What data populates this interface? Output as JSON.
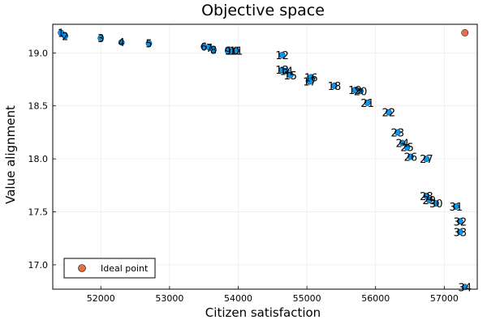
{
  "chart_data": {
    "type": "scatter",
    "title": "Objective space",
    "xlabel": "Citizen satisfaction",
    "ylabel": "Value alignment",
    "xlim": [
      51300,
      57480
    ],
    "ylim": [
      16.77,
      19.27
    ],
    "x_ticks": [
      52000,
      53000,
      54000,
      55000,
      56000,
      57000
    ],
    "y_ticks": [
      17.0,
      17.5,
      18.0,
      18.5,
      19.0
    ],
    "x_tick_labels": [
      "52000",
      "53000",
      "54000",
      "55000",
      "56000",
      "57000"
    ],
    "y_tick_labels": [
      "17.0",
      "17.5",
      "18.0",
      "18.5",
      "19.0"
    ],
    "grid": true,
    "legend_position": "bottom-left",
    "series": [
      {
        "role": "solutions",
        "color": "#009AFA",
        "points": [
          {
            "x": 51420,
            "y": 19.19,
            "label": "1"
          },
          {
            "x": 51480,
            "y": 19.16,
            "label": "2"
          },
          {
            "x": 52000,
            "y": 19.14,
            "label": "3"
          },
          {
            "x": 52300,
            "y": 19.1,
            "label": "4"
          },
          {
            "x": 52700,
            "y": 19.09,
            "label": "5"
          },
          {
            "x": 53500,
            "y": 19.06,
            "label": "6"
          },
          {
            "x": 53580,
            "y": 19.05,
            "label": "7"
          },
          {
            "x": 53640,
            "y": 19.03,
            "label": "8"
          },
          {
            "x": 53850,
            "y": 19.02,
            "label": "9"
          },
          {
            "x": 53920,
            "y": 19.02,
            "label": "10"
          },
          {
            "x": 53970,
            "y": 19.02,
            "label": "11"
          },
          {
            "x": 54640,
            "y": 18.98,
            "label": "12"
          },
          {
            "x": 54640,
            "y": 18.84,
            "label": "13"
          },
          {
            "x": 54700,
            "y": 18.83,
            "label": "14"
          },
          {
            "x": 54760,
            "y": 18.79,
            "label": "15"
          },
          {
            "x": 55060,
            "y": 18.77,
            "label": "16"
          },
          {
            "x": 55040,
            "y": 18.73,
            "label": "17"
          },
          {
            "x": 55400,
            "y": 18.69,
            "label": "18"
          },
          {
            "x": 55700,
            "y": 18.65,
            "label": "19"
          },
          {
            "x": 55780,
            "y": 18.64,
            "label": "20"
          },
          {
            "x": 55880,
            "y": 18.53,
            "label": "21"
          },
          {
            "x": 56190,
            "y": 18.44,
            "label": "22"
          },
          {
            "x": 56320,
            "y": 18.25,
            "label": "23"
          },
          {
            "x": 56390,
            "y": 18.15,
            "label": "24"
          },
          {
            "x": 56460,
            "y": 18.11,
            "label": "25"
          },
          {
            "x": 56510,
            "y": 18.02,
            "label": "26"
          },
          {
            "x": 56740,
            "y": 18.0,
            "label": "27"
          },
          {
            "x": 56740,
            "y": 17.65,
            "label": "28"
          },
          {
            "x": 56780,
            "y": 17.61,
            "label": "29"
          },
          {
            "x": 56880,
            "y": 17.58,
            "label": "30"
          },
          {
            "x": 57170,
            "y": 17.55,
            "label": "31"
          },
          {
            "x": 57230,
            "y": 17.41,
            "label": "32"
          },
          {
            "x": 57230,
            "y": 17.31,
            "label": "33"
          },
          {
            "x": 57300,
            "y": 16.79,
            "label": "34"
          }
        ]
      },
      {
        "name": "Ideal point",
        "role": "ideal",
        "color": "#E26F46",
        "points": [
          {
            "x": 57300,
            "y": 19.19
          }
        ]
      }
    ]
  }
}
